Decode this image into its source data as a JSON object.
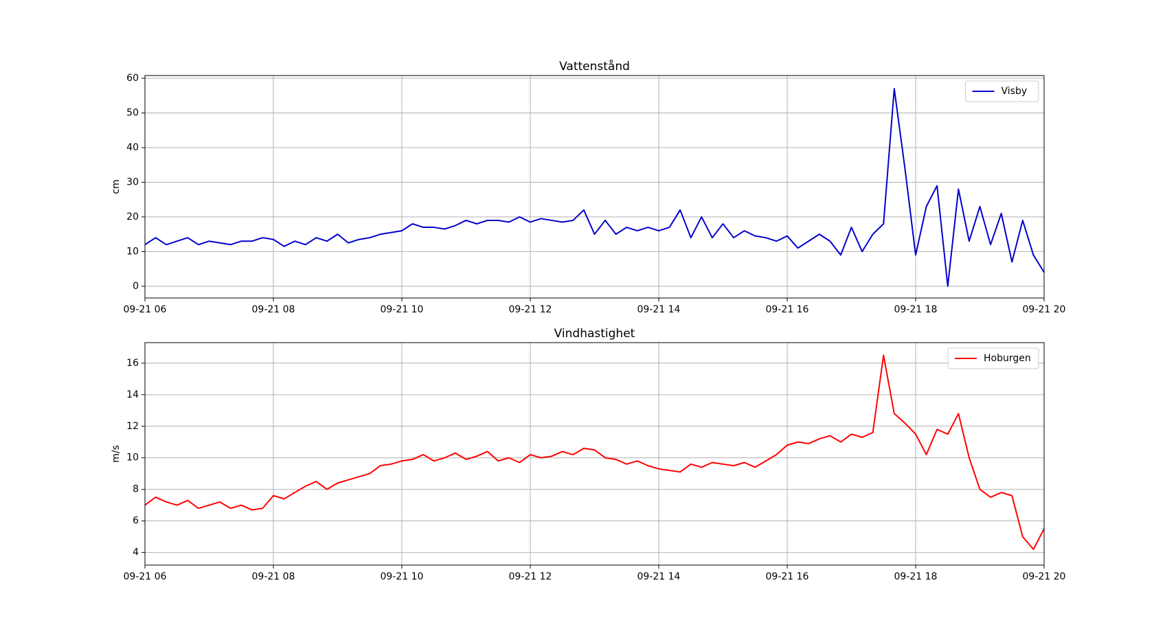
{
  "chart_data": [
    {
      "type": "line",
      "title": "Vattenstånd",
      "ylabel": "cm",
      "x": [
        "09-21 06:00",
        "09-21 06:10",
        "09-21 06:20",
        "09-21 06:30",
        "09-21 06:40",
        "09-21 06:50",
        "09-21 07:00",
        "09-21 07:10",
        "09-21 07:20",
        "09-21 07:30",
        "09-21 07:40",
        "09-21 07:50",
        "09-21 08:00",
        "09-21 08:10",
        "09-21 08:20",
        "09-21 08:30",
        "09-21 08:40",
        "09-21 08:50",
        "09-21 09:00",
        "09-21 09:10",
        "09-21 09:20",
        "09-21 09:30",
        "09-21 09:40",
        "09-21 09:50",
        "09-21 10:00",
        "09-21 10:10",
        "09-21 10:20",
        "09-21 10:30",
        "09-21 10:40",
        "09-21 10:50",
        "09-21 11:00",
        "09-21 11:10",
        "09-21 11:20",
        "09-21 11:30",
        "09-21 11:40",
        "09-21 11:50",
        "09-21 12:00",
        "09-21 12:10",
        "09-21 12:20",
        "09-21 12:30",
        "09-21 12:40",
        "09-21 12:50",
        "09-21 13:00",
        "09-21 13:10",
        "09-21 13:20",
        "09-21 13:30",
        "09-21 13:40",
        "09-21 13:50",
        "09-21 14:00",
        "09-21 14:10",
        "09-21 14:20",
        "09-21 14:30",
        "09-21 14:40",
        "09-21 14:50",
        "09-21 15:00",
        "09-21 15:10",
        "09-21 15:20",
        "09-21 15:30",
        "09-21 15:40",
        "09-21 15:50",
        "09-21 16:00",
        "09-21 16:10",
        "09-21 16:20",
        "09-21 16:30",
        "09-21 16:40",
        "09-21 16:50",
        "09-21 17:00",
        "09-21 17:10",
        "09-21 17:20",
        "09-21 17:30",
        "09-21 17:40",
        "09-21 17:50",
        "09-21 18:00",
        "09-21 18:10",
        "09-21 18:20",
        "09-21 18:30",
        "09-21 18:40",
        "09-21 18:50",
        "09-21 19:00",
        "09-21 19:10",
        "09-21 19:20",
        "09-21 19:30",
        "09-21 19:40",
        "09-21 19:50",
        "09-21 20:00"
      ],
      "series": [
        {
          "name": "Visby",
          "color": "#0000cc",
          "values": [
            12,
            14,
            12,
            13,
            14,
            12,
            13,
            12.5,
            12,
            13,
            13,
            14,
            13.5,
            11.5,
            13,
            12,
            14,
            13,
            15,
            12.5,
            13.5,
            14,
            15,
            15.5,
            16,
            18,
            17,
            17,
            16.5,
            17.5,
            19,
            18,
            19,
            19,
            18.5,
            20,
            18.5,
            19.5,
            19,
            18.5,
            19,
            22,
            15,
            19,
            15,
            17,
            16,
            17,
            16,
            17,
            22,
            14,
            20,
            14,
            18,
            14,
            16,
            14.5,
            14,
            13,
            14.5,
            11,
            13,
            15,
            13,
            9,
            17,
            10,
            15,
            18,
            57,
            34,
            9,
            23,
            29,
            0,
            28,
            13,
            23,
            12,
            21,
            7,
            19,
            9,
            4
          ]
        }
      ],
      "xlim": [
        "09-21 06",
        "09-21 20"
      ],
      "xticks": [
        "09-21 06",
        "09-21 08",
        "09-21 10",
        "09-21 12",
        "09-21 14",
        "09-21 16",
        "09-21 18",
        "09-21 20"
      ],
      "ylim": [
        -3.4,
        60.8
      ],
      "yticks": [
        0,
        10,
        20,
        30,
        40,
        50,
        60
      ],
      "grid": true,
      "legend": "upper right"
    },
    {
      "type": "line",
      "title": "Vindhastighet",
      "ylabel": "m/s",
      "x": [
        "09-21 06:00",
        "09-21 06:10",
        "09-21 06:20",
        "09-21 06:30",
        "09-21 06:40",
        "09-21 06:50",
        "09-21 07:00",
        "09-21 07:10",
        "09-21 07:20",
        "09-21 07:30",
        "09-21 07:40",
        "09-21 07:50",
        "09-21 08:00",
        "09-21 08:10",
        "09-21 08:20",
        "09-21 08:30",
        "09-21 08:40",
        "09-21 08:50",
        "09-21 09:00",
        "09-21 09:10",
        "09-21 09:20",
        "09-21 09:30",
        "09-21 09:40",
        "09-21 09:50",
        "09-21 10:00",
        "09-21 10:10",
        "09-21 10:20",
        "09-21 10:30",
        "09-21 10:40",
        "09-21 10:50",
        "09-21 11:00",
        "09-21 11:10",
        "09-21 11:20",
        "09-21 11:30",
        "09-21 11:40",
        "09-21 11:50",
        "09-21 12:00",
        "09-21 12:10",
        "09-21 12:20",
        "09-21 12:30",
        "09-21 12:40",
        "09-21 12:50",
        "09-21 13:00",
        "09-21 13:10",
        "09-21 13:20",
        "09-21 13:30",
        "09-21 13:40",
        "09-21 13:50",
        "09-21 14:00",
        "09-21 14:10",
        "09-21 14:20",
        "09-21 14:30",
        "09-21 14:40",
        "09-21 14:50",
        "09-21 15:00",
        "09-21 15:10",
        "09-21 15:20",
        "09-21 15:30",
        "09-21 15:40",
        "09-21 15:50",
        "09-21 16:00",
        "09-21 16:10",
        "09-21 16:20",
        "09-21 16:30",
        "09-21 16:40",
        "09-21 16:50",
        "09-21 17:00",
        "09-21 17:10",
        "09-21 17:20",
        "09-21 17:30",
        "09-21 17:40",
        "09-21 17:50",
        "09-21 18:00",
        "09-21 18:10",
        "09-21 18:20",
        "09-21 18:30",
        "09-21 18:40",
        "09-21 18:50",
        "09-21 19:00",
        "09-21 19:10",
        "09-21 19:20",
        "09-21 19:30",
        "09-21 19:40",
        "09-21 19:50",
        "09-21 20:00"
      ],
      "series": [
        {
          "name": "Hoburgen",
          "color": "#ff0000",
          "values": [
            7,
            7.5,
            7.2,
            7,
            7.3,
            6.8,
            7,
            7.2,
            6.8,
            7,
            6.7,
            6.8,
            7.6,
            7.4,
            7.8,
            8.2,
            8.5,
            8,
            8.4,
            8.6,
            8.8,
            9,
            9.5,
            9.6,
            9.8,
            9.9,
            10.2,
            9.8,
            10,
            10.3,
            9.9,
            10.1,
            10.4,
            9.8,
            10,
            9.7,
            10.2,
            10,
            10.1,
            10.4,
            10.2,
            10.6,
            10.5,
            10,
            9.9,
            9.6,
            9.8,
            9.5,
            9.3,
            9.2,
            9.1,
            9.6,
            9.4,
            9.7,
            9.6,
            9.5,
            9.7,
            9.4,
            9.8,
            10.2,
            10.8,
            11,
            10.9,
            11.2,
            11.4,
            11,
            11.5,
            11.3,
            11.6,
            16.5,
            12.8,
            12.2,
            11.5,
            10.2,
            11.8,
            11.5,
            12.8,
            10,
            8,
            7.5,
            7.8,
            7.6,
            5,
            4.2,
            5.5
          ]
        }
      ],
      "xlim": [
        "09-21 06",
        "09-21 20"
      ],
      "xticks": [
        "09-21 06",
        "09-21 08",
        "09-21 10",
        "09-21 12",
        "09-21 14",
        "09-21 16",
        "09-21 18",
        "09-21 20"
      ],
      "ylim": [
        3.2,
        17.3
      ],
      "yticks": [
        4,
        6,
        8,
        10,
        12,
        14,
        16
      ],
      "grid": true,
      "legend": "upper right"
    }
  ]
}
